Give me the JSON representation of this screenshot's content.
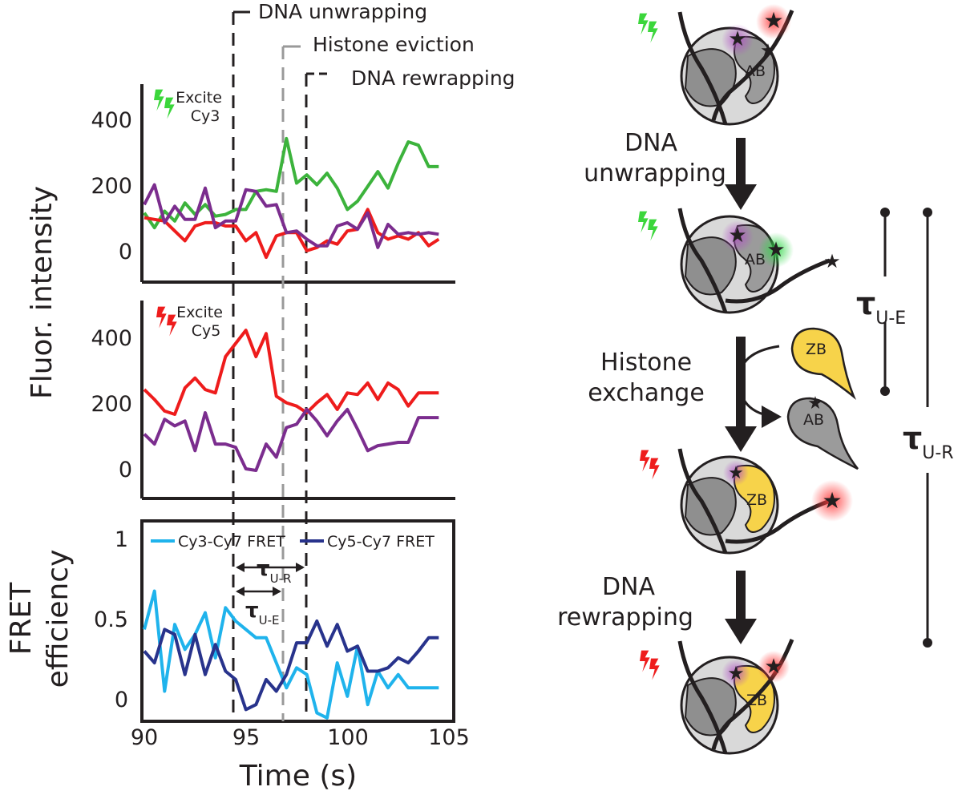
{
  "chart_data": [
    {
      "type": "line",
      "panel": "top",
      "title": "",
      "xlabel": "Time (s)",
      "ylabel": "Fluor. intensity",
      "xlim": [
        90,
        105
      ],
      "ylim": [
        -90,
        510
      ],
      "yticks": [
        "0",
        "200",
        "400"
      ],
      "excitation": {
        "lines": [
          "Excite",
          "Cy3"
        ],
        "color": "#3bd63b"
      },
      "series": [
        {
          "name": "Cy3 (green)",
          "color": "#3cb33c",
          "x": [
            90,
            90.5,
            91,
            91.5,
            92,
            92.5,
            93,
            93.5,
            94,
            94.5,
            95,
            95.5,
            96,
            96.5,
            97,
            97.5,
            98,
            98.5,
            99,
            99.5,
            100,
            100.5,
            101,
            101.5,
            102,
            102.5,
            103,
            103.5,
            104,
            104.5
          ],
          "values": [
            120,
            75,
            125,
            95,
            150,
            115,
            145,
            110,
            115,
            130,
            130,
            185,
            190,
            185,
            345,
            210,
            235,
            205,
            240,
            195,
            130,
            155,
            200,
            245,
            195,
            270,
            335,
            325,
            260,
            260
          ]
        },
        {
          "name": "Cy5 (red)",
          "color": "#ee1c1c",
          "x": [
            90,
            90.5,
            91,
            91.5,
            92,
            92.5,
            93,
            93.5,
            94,
            94.5,
            95,
            95.5,
            96,
            96.5,
            97,
            97.5,
            98,
            98.5,
            99,
            99.5,
            100,
            100.5,
            101,
            101.5,
            102,
            102.5,
            103,
            103.5,
            104,
            104.5
          ],
          "values": [
            105,
            100,
            95,
            65,
            35,
            80,
            90,
            90,
            80,
            80,
            35,
            60,
            -15,
            50,
            60,
            60,
            5,
            15,
            35,
            25,
            65,
            70,
            130,
            60,
            40,
            50,
            40,
            60,
            20,
            40
          ]
        },
        {
          "name": "Cy7 (purple)",
          "color": "#7b2d8e",
          "x": [
            90,
            90.5,
            91,
            91.5,
            92,
            92.5,
            93,
            93.5,
            94,
            94.5,
            95,
            95.5,
            96,
            96.5,
            97,
            97.5,
            98,
            98.5,
            99,
            99.5,
            100,
            100.5,
            101,
            101.5,
            102,
            102.5,
            103,
            103.5,
            104,
            104.5
          ],
          "values": [
            145,
            205,
            90,
            140,
            100,
            100,
            195,
            75,
            95,
            95,
            190,
            185,
            140,
            145,
            60,
            65,
            40,
            20,
            20,
            80,
            90,
            70,
            120,
            15,
            85,
            55,
            60,
            55,
            60,
            55
          ]
        }
      ]
    },
    {
      "type": "line",
      "panel": "middle",
      "title": "",
      "xlabel": "",
      "ylabel": "",
      "xlim": [
        90,
        105
      ],
      "ylim": [
        -90,
        510
      ],
      "yticks": [
        "0",
        "200",
        "400"
      ],
      "excitation": {
        "lines": [
          "Excite",
          "Cy5"
        ],
        "color": "#ee1c1c"
      },
      "series": [
        {
          "name": "Cy5 (red)",
          "color": "#ee1c1c",
          "x": [
            90,
            90.5,
            91,
            91.5,
            92,
            92.5,
            93,
            93.5,
            94,
            94.5,
            95,
            95.5,
            96,
            96.5,
            97,
            97.5,
            98,
            98.5,
            99,
            99.5,
            100,
            100.5,
            101,
            101.5,
            102,
            102.5,
            103,
            103.5,
            104,
            104.5
          ],
          "values": [
            240,
            210,
            175,
            165,
            245,
            275,
            240,
            230,
            340,
            380,
            420,
            340,
            410,
            220,
            200,
            190,
            170,
            200,
            225,
            180,
            230,
            225,
            260,
            210,
            260,
            240,
            190,
            230,
            230,
            230
          ]
        },
        {
          "name": "Cy7 (purple)",
          "color": "#7b2d8e",
          "x": [
            90,
            90.5,
            91,
            91.5,
            92,
            92.5,
            93,
            93.5,
            94,
            94.5,
            95,
            95.5,
            96,
            96.5,
            97,
            97.5,
            98,
            98.5,
            99,
            99.5,
            100,
            100.5,
            101,
            101.5,
            102,
            102.5,
            103,
            103.5,
            104,
            104.5
          ],
          "values": [
            105,
            75,
            150,
            130,
            145,
            55,
            170,
            75,
            75,
            65,
            0,
            -5,
            75,
            35,
            125,
            135,
            180,
            145,
            100,
            145,
            180,
            120,
            55,
            70,
            75,
            80,
            80,
            155,
            155,
            155
          ]
        }
      ]
    },
    {
      "type": "line",
      "panel": "bottom",
      "title": "",
      "xlabel": "Time (s)",
      "ylabel": "FRET efficiency",
      "xlim": [
        90,
        105
      ],
      "ylim": [
        -0.1,
        1.1
      ],
      "xticks": [
        "90",
        "95",
        "100",
        "105"
      ],
      "yticks": [
        "0",
        "0.5",
        "1"
      ],
      "series": [
        {
          "name": "Cy3-Cy7 FRET",
          "color": "#1fb3ec",
          "x": [
            90,
            90.5,
            91,
            91.5,
            92,
            92.5,
            93,
            93.5,
            94,
            94.5,
            95,
            95.5,
            96,
            96.5,
            97,
            97.5,
            98,
            98.5,
            99,
            99.5,
            100,
            100.5,
            101,
            101.5,
            102,
            102.5,
            103,
            103.5,
            104,
            104.5
          ],
          "values": [
            0.45,
            0.68,
            0.08,
            0.48,
            0.33,
            0.42,
            0.55,
            0.28,
            0.58,
            0.5,
            0.45,
            0.4,
            0.4,
            0.25,
            0.1,
            0.22,
            0.18,
            -0.05,
            -0.08,
            0.25,
            0.05,
            0.35,
            0.0,
            0.2,
            0.1,
            0.18,
            0.1,
            0.1,
            0.1,
            0.1
          ]
        },
        {
          "name": "Cy5-Cy7 FRET",
          "color": "#28338c",
          "x": [
            90,
            90.5,
            91,
            91.5,
            92,
            92.5,
            93,
            93.5,
            94,
            94.5,
            95,
            95.5,
            96,
            96.5,
            97,
            97.5,
            98,
            98.5,
            99,
            99.5,
            100,
            100.5,
            101,
            101.5,
            102,
            102.5,
            103,
            103.5,
            104,
            104.5
          ],
          "values": [
            0.32,
            0.25,
            0.45,
            0.42,
            0.18,
            0.42,
            0.18,
            0.36,
            0.2,
            0.15,
            -0.03,
            0.0,
            0.15,
            0.08,
            0.18,
            0.37,
            0.37,
            0.5,
            0.35,
            0.48,
            0.32,
            0.35,
            0.2,
            0.2,
            0.22,
            0.28,
            0.25,
            0.32,
            0.4,
            0.4
          ]
        }
      ],
      "legend": [
        "Cy3-Cy7 FRET",
        "Cy5-Cy7 FRET"
      ],
      "interval_annotations": [
        {
          "label": "τ",
          "sub": "U-R",
          "from": 94.4,
          "to": 97.8
        },
        {
          "label": "τ",
          "sub": "U-E",
          "from": 94.4,
          "to": 96.7
        }
      ]
    }
  ],
  "events": [
    {
      "label": "DNA unwrapping",
      "x": 94.4,
      "color": "#231f20"
    },
    {
      "label": "Histone eviction",
      "x": 96.7,
      "color": "#999999"
    },
    {
      "label": "DNA rewrapping",
      "x": 97.8,
      "color": "#231f20"
    }
  ],
  "schematic": {
    "steps": [
      "DNA unwrapping",
      "Histone exchange",
      "DNA rewrapping"
    ],
    "step_lines": [
      [
        "DNA",
        "unwrapping"
      ],
      [
        "Histone",
        "exchange"
      ],
      [
        "DNA",
        "rewrapping"
      ]
    ],
    "dimer_ab": "AB",
    "dimer_zb": "ZB",
    "tau_ue": {
      "symbol": "τ",
      "sub": "U-E"
    },
    "tau_ur": {
      "symbol": "τ",
      "sub": "U-R"
    }
  }
}
